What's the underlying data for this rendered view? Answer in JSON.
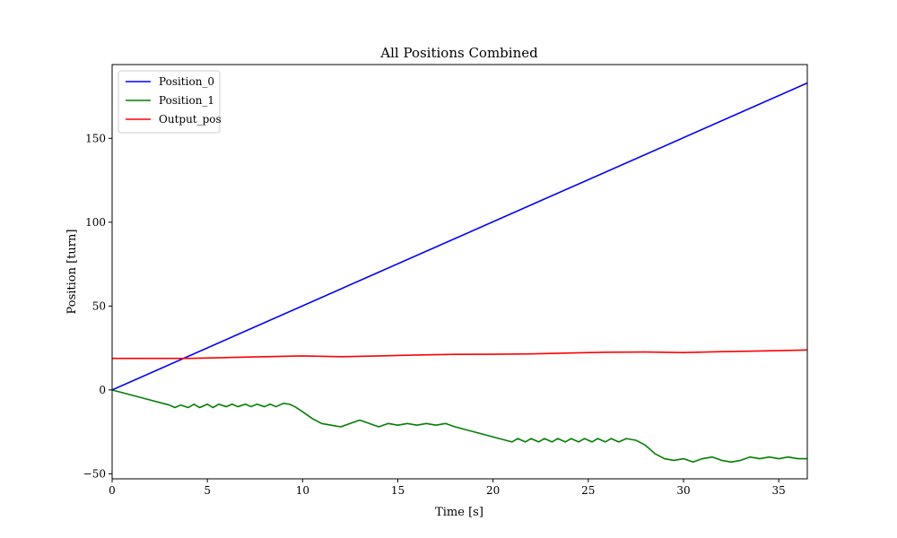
{
  "chart_data": {
    "type": "line",
    "title": "All Positions Combined",
    "xlabel": "Time [s]",
    "ylabel": "Position [turn]",
    "xlim": [
      0,
      36.5
    ],
    "ylim": [
      -53,
      194
    ],
    "xticks": [
      0,
      5,
      10,
      15,
      20,
      25,
      30,
      35
    ],
    "yticks": [
      -50,
      0,
      50,
      100,
      150
    ],
    "grid": false,
    "legend_position": "top-left",
    "series": [
      {
        "name": "Position_0",
        "color": "#0000ff",
        "x": [
          0,
          36.5
        ],
        "y": [
          0,
          183
        ]
      },
      {
        "name": "Position_1",
        "color": "#008000",
        "x": [
          0,
          1,
          2,
          3,
          3.3,
          3.6,
          4.0,
          4.3,
          4.6,
          5.0,
          5.3,
          5.6,
          6.0,
          6.3,
          6.6,
          7.0,
          7.3,
          7.6,
          8.0,
          8.3,
          8.6,
          9.0,
          9.3,
          9.6,
          10.0,
          10.5,
          11,
          11.5,
          12,
          12.5,
          13,
          13.5,
          14,
          14.5,
          15,
          15.5,
          16,
          16.5,
          17,
          17.5,
          18,
          19,
          20,
          21,
          21.3,
          21.7,
          22.0,
          22.4,
          22.7,
          23.1,
          23.4,
          23.8,
          24.1,
          24.5,
          24.8,
          25.2,
          25.5,
          25.9,
          26.2,
          26.6,
          27.0,
          27.5,
          28,
          28.5,
          29,
          29.5,
          30,
          30.5,
          31,
          31.5,
          32,
          32.5,
          33,
          33.5,
          34,
          34.5,
          35,
          35.5,
          36,
          36.5
        ],
        "y": [
          0,
          -3,
          -6,
          -9,
          -10.5,
          -9,
          -10.5,
          -8.5,
          -10.5,
          -8.5,
          -10.5,
          -8.5,
          -10,
          -8.5,
          -10,
          -8.5,
          -10,
          -8.5,
          -10,
          -8.5,
          -10,
          -8,
          -8.5,
          -10,
          -13,
          -17,
          -20,
          -21,
          -22,
          -20,
          -18,
          -20,
          -22,
          -20,
          -21,
          -20,
          -21,
          -20,
          -21,
          -20,
          -22,
          -25,
          -28,
          -31,
          -29,
          -31,
          -29,
          -31,
          -29,
          -31,
          -29,
          -31,
          -29,
          -31,
          -29,
          -31,
          -29,
          -31,
          -29,
          -31,
          -29,
          -30,
          -33,
          -38,
          -41,
          -42,
          -41,
          -43,
          -41,
          -40,
          -42,
          -43,
          -42,
          -40,
          -41,
          -40,
          -41,
          -40,
          -41,
          -41
        ]
      },
      {
        "name": "Output_pos",
        "color": "#ff0000",
        "x": [
          0,
          2,
          4,
          6,
          8,
          10,
          12,
          14,
          16,
          18,
          20,
          22,
          24,
          26,
          28,
          30,
          32,
          34,
          36.5
        ],
        "y": [
          18.8,
          18.8,
          18.8,
          19.3,
          19.8,
          20.3,
          19.8,
          20.3,
          20.8,
          21.2,
          21.3,
          21.5,
          22.0,
          22.5,
          22.6,
          22.3,
          22.8,
          23.2,
          23.8
        ]
      }
    ]
  }
}
